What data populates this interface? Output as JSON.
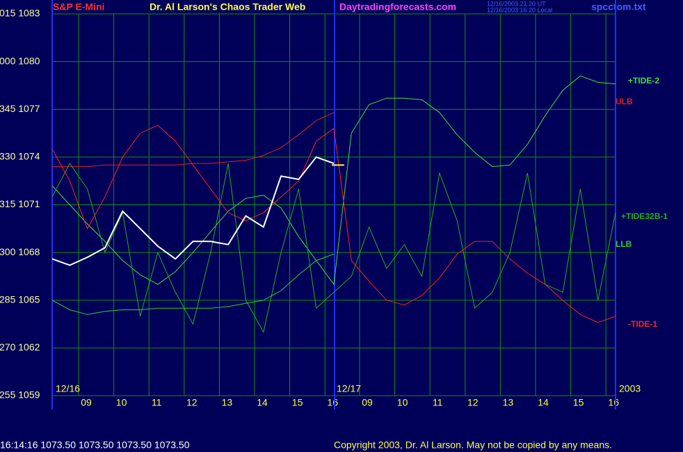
{
  "chart_data": {
    "type": "line",
    "title": "S&P E-Mini",
    "header": "Dr. Al Larson's Chaos Trader Web",
    "site": "Daytradingforecasts.com",
    "timestamp_ut": "12/16/2003 21:20 UT",
    "timestamp_local": "12/16/2003 16:20 Local",
    "file": "spcctom.txt",
    "day_labels": [
      "12/16",
      "12/17",
      "2003"
    ],
    "x_labels": [
      "09",
      "10",
      "11",
      "12",
      "13",
      "14",
      "15",
      "16",
      "09",
      "10",
      "11",
      "12",
      "13",
      "14",
      "15",
      "16"
    ],
    "quote": "16:14:16  1073.50 1073.50 1073.50 1073.50",
    "copyright": "Copyright 2003, Dr. Al Larson. May not be copied by any means.",
    "last_price": 1073.5,
    "ylim": [
      1059,
      1083
    ],
    "yticks": [
      {
        "value": 1083,
        "label": "015 1083"
      },
      {
        "value": 1080,
        "label": "000 1080"
      },
      {
        "value": 1077,
        "label": "345 1077"
      },
      {
        "value": 1074,
        "label": "330 1074"
      },
      {
        "value": 1071,
        "label": "315 1071"
      },
      {
        "value": 1068,
        "label": "300 1068"
      },
      {
        "value": 1065,
        "label": "285 1065"
      },
      {
        "value": 1062,
        "label": "270 1062"
      },
      {
        "value": 1059,
        "label": "255 1059"
      }
    ],
    "grid": true,
    "series": [
      {
        "name": "+TIDE-2",
        "color": "#40e040",
        "values": [
          1072.2,
          1071.0,
          1069.8,
          1068.7,
          1067.5,
          1066.6,
          1066.0,
          1066.8,
          1068.0,
          1069.3,
          1070.6,
          1071.4,
          1071.6,
          1070.8,
          1069.0,
          1067.5,
          1066.0,
          1075.5,
          1077.3,
          1077.7,
          1077.7,
          1077.6,
          1076.8,
          1075.4,
          1074.3,
          1073.4,
          1073.5,
          1074.8,
          1076.6,
          1078.2,
          1079.1,
          1078.7,
          1078.6
        ]
      },
      {
        "name": "ULB",
        "color": "#e02020",
        "values": [
          1073.4,
          1073.4,
          1073.4,
          1073.5,
          1073.5,
          1073.5,
          1073.5,
          1073.5,
          1073.6,
          1073.6,
          1073.7,
          1073.8,
          1074.1,
          1074.6,
          1075.4,
          1076.3,
          1076.8,
          null,
          null,
          null,
          null,
          null,
          null,
          null,
          null,
          null,
          null,
          null,
          null,
          null,
          null,
          null,
          null
        ]
      },
      {
        "name": "+TIDE32B-1",
        "color": "#20b020",
        "values": [
          1071.5,
          1073.6,
          1072.0,
          1068.0,
          1070.5,
          1064.0,
          1068.0,
          1065.5,
          1063.5,
          1068.0,
          1073.6,
          1065.0,
          1063.0,
          1068.0,
          1072.0,
          1064.5,
          1065.5,
          1066.5,
          1069.6,
          1067.0,
          1068.5,
          1066.5,
          1073.0,
          1070.0,
          1064.5,
          1065.5,
          1068.0,
          1073.0,
          1066.0,
          1065.5,
          1072.0,
          1065.0,
          1070.5
        ]
      },
      {
        "name": "LLB",
        "color": "#30d030",
        "values": [
          1065.0,
          1064.4,
          1064.1,
          1064.3,
          1064.4,
          1064.4,
          1064.5,
          1064.5,
          1064.5,
          1064.5,
          1064.6,
          1064.8,
          1065.0,
          1065.6,
          1066.6,
          1067.5,
          1067.9,
          null,
          null,
          null,
          null,
          null,
          null,
          null,
          null,
          null,
          null,
          null,
          null,
          null,
          null,
          null,
          null
        ]
      },
      {
        "name": "-TIDE-1",
        "color": "#ff2020",
        "values": [
          1074.5,
          1072.5,
          1069.5,
          1071.5,
          1074.0,
          1075.5,
          1076.0,
          1075.0,
          1073.5,
          1072.0,
          1070.5,
          1070.0,
          1070.5,
          1071.5,
          1072.5,
          1075.0,
          1075.8,
          1067.5,
          1066.2,
          1065.0,
          1064.7,
          1065.3,
          1066.4,
          1067.9,
          1068.7,
          1068.7,
          1067.6,
          1066.7,
          1066.0,
          1065.0,
          1064.1,
          1063.6,
          1064.0
        ]
      },
      {
        "color": "#ffffff",
        "values": [
          1067.6,
          1067.2,
          1067.7,
          1068.3,
          1070.6,
          1069.5,
          1068.4,
          1067.6,
          1068.7,
          1068.7,
          1068.5,
          1070.3,
          1069.6,
          1072.8,
          1072.6,
          1074.0,
          1073.6,
          null,
          null,
          null,
          null,
          null,
          null,
          null,
          null,
          null,
          null,
          null,
          null,
          null,
          null,
          null,
          null
        ]
      }
    ]
  }
}
